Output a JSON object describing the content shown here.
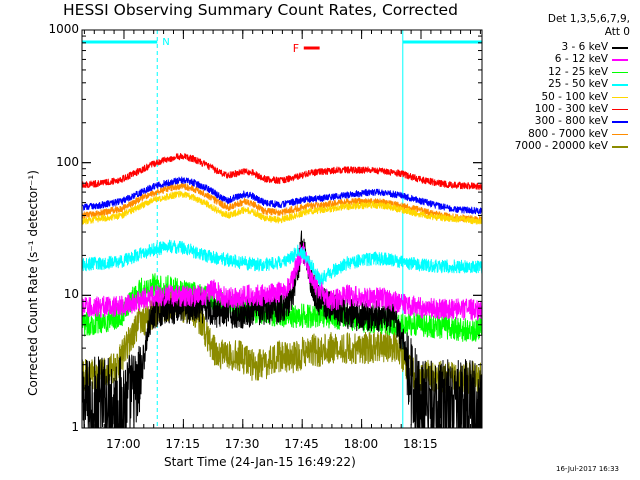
{
  "chart_data": {
    "type": "line",
    "title": "HESSI Observing Summary Count Rates, Corrected",
    "xlabel": "Start Time (24-Jan-15 16:49:22)",
    "ylabel": "Corrected Count Rate (s⁻¹ detector⁻¹)",
    "x_unit": "minutes after 16:49:22 UT",
    "x_range": [
      0,
      101
    ],
    "ylim": [
      1,
      1000
    ],
    "y_scale": "log",
    "x_ticks": [
      {
        "label": "17:00",
        "minute": 10.6
      },
      {
        "label": "17:15",
        "minute": 25.6
      },
      {
        "label": "17:30",
        "minute": 40.6
      },
      {
        "label": "17:45",
        "minute": 55.6
      },
      {
        "label": "18:00",
        "minute": 70.6
      },
      {
        "label": "18:15",
        "minute": 85.6
      }
    ],
    "y_ticks": [
      {
        "label": "1",
        "value": 1
      },
      {
        "label": "10",
        "value": 10
      },
      {
        "label": "100",
        "value": 100
      },
      {
        "label": "1000",
        "value": 1000
      }
    ],
    "legend_header": [
      "Det 1,3,5,6,7,9,",
      "Att 0"
    ],
    "series": [
      {
        "name": "3 - 6 keV",
        "color": "#000000",
        "points": [
          [
            0,
            1.5
          ],
          [
            5,
            1.6
          ],
          [
            10,
            1.6
          ],
          [
            14,
            1.8
          ],
          [
            16,
            4
          ],
          [
            17,
            6
          ],
          [
            18.5,
            7.5
          ],
          [
            22,
            8
          ],
          [
            30,
            8
          ],
          [
            34,
            7.5
          ],
          [
            37,
            7.3
          ],
          [
            42,
            7.5
          ],
          [
            45,
            7.8
          ],
          [
            49,
            8
          ],
          [
            51,
            8.3
          ],
          [
            53,
            10
          ],
          [
            54.5,
            16
          ],
          [
            55.5,
            24
          ],
          [
            56.5,
            20
          ],
          [
            58,
            12
          ],
          [
            60,
            9
          ],
          [
            65,
            7.5
          ],
          [
            70,
            7
          ],
          [
            76,
            7
          ],
          [
            79,
            6.5
          ],
          [
            81,
            4.5
          ],
          [
            83,
            2.2
          ],
          [
            86,
            1.5
          ],
          [
            91,
            1.5
          ],
          [
            96,
            1.5
          ],
          [
            101,
            1.5
          ]
        ]
      },
      {
        "name": "6 - 12 keV",
        "color": "#ff00ff",
        "points": [
          [
            0,
            8
          ],
          [
            5,
            8.2
          ],
          [
            10,
            8.3
          ],
          [
            14,
            9
          ],
          [
            18,
            10
          ],
          [
            22,
            10
          ],
          [
            27,
            9.8
          ],
          [
            31,
            10
          ],
          [
            33,
            11
          ],
          [
            37,
            9.5
          ],
          [
            42,
            10
          ],
          [
            47,
            10
          ],
          [
            51,
            11
          ],
          [
            53,
            13
          ],
          [
            54.5,
            18
          ],
          [
            55.5,
            22
          ],
          [
            56.5,
            19
          ],
          [
            58,
            13
          ],
          [
            60,
            11
          ],
          [
            63,
            9
          ],
          [
            67,
            10
          ],
          [
            72,
            9.5
          ],
          [
            76,
            9.5
          ],
          [
            79,
            9
          ],
          [
            82,
            8.5
          ],
          [
            86,
            8
          ],
          [
            91,
            8
          ],
          [
            96,
            7.8
          ],
          [
            101,
            7.8
          ]
        ]
      },
      {
        "name": "12 - 25 keV",
        "color": "#00ff00",
        "points": [
          [
            0,
            6
          ],
          [
            5,
            6.3
          ],
          [
            10,
            7
          ],
          [
            13,
            10
          ],
          [
            15,
            11
          ],
          [
            18,
            12
          ],
          [
            22,
            11.5
          ],
          [
            26,
            10.5
          ],
          [
            30,
            10
          ],
          [
            34,
            9
          ],
          [
            38,
            8
          ],
          [
            42,
            7.5
          ],
          [
            46,
            7.5
          ],
          [
            50,
            7
          ],
          [
            55,
            7
          ],
          [
            60,
            7
          ],
          [
            65,
            6.8
          ],
          [
            70,
            6.5
          ],
          [
            75,
            6.3
          ],
          [
            80,
            6
          ],
          [
            85,
            6
          ],
          [
            90,
            5.8
          ],
          [
            96,
            5.5
          ],
          [
            101,
            5.5
          ]
        ]
      },
      {
        "name": "25 - 50 keV",
        "color": "#00ffff",
        "points": [
          [
            0,
            17
          ],
          [
            5,
            17.5
          ],
          [
            10,
            18
          ],
          [
            14,
            20
          ],
          [
            18,
            22
          ],
          [
            22,
            23.5
          ],
          [
            26,
            22.5
          ],
          [
            30,
            20.5
          ],
          [
            34,
            19
          ],
          [
            37,
            18.5
          ],
          [
            41,
            17.5
          ],
          [
            45,
            17
          ],
          [
            49,
            17.5
          ],
          [
            52,
            18.5
          ],
          [
            55,
            22
          ],
          [
            58,
            17
          ],
          [
            60,
            13
          ],
          [
            63,
            15
          ],
          [
            67,
            17.5
          ],
          [
            71,
            18.5
          ],
          [
            74,
            19
          ],
          [
            78,
            18.5
          ],
          [
            82,
            17.5
          ],
          [
            86,
            17
          ],
          [
            91,
            16.5
          ],
          [
            96,
            16.5
          ],
          [
            101,
            16.5
          ]
        ]
      },
      {
        "name": "50 - 100 keV",
        "color": "#ffd700",
        "points": [
          [
            0,
            36
          ],
          [
            5,
            38
          ],
          [
            10,
            40
          ],
          [
            14,
            46
          ],
          [
            18,
            52
          ],
          [
            22,
            56
          ],
          [
            25,
            58
          ],
          [
            28,
            55
          ],
          [
            32,
            48
          ],
          [
            35,
            42
          ],
          [
            37,
            40
          ],
          [
            39,
            42
          ],
          [
            41,
            44
          ],
          [
            43,
            43
          ],
          [
            46,
            38
          ],
          [
            50,
            37
          ],
          [
            54,
            40
          ],
          [
            57,
            43
          ],
          [
            61,
            44
          ],
          [
            65,
            46
          ],
          [
            69,
            47
          ],
          [
            73,
            48
          ],
          [
            77,
            47
          ],
          [
            81,
            44
          ],
          [
            85,
            41
          ],
          [
            89,
            39
          ],
          [
            93,
            38
          ],
          [
            97,
            37
          ],
          [
            101,
            36
          ]
        ]
      },
      {
        "name": "100 - 300 keV",
        "color": "#ff0000",
        "points": [
          [
            0,
            68
          ],
          [
            5,
            70
          ],
          [
            10,
            75
          ],
          [
            14,
            85
          ],
          [
            18,
            98
          ],
          [
            22,
            107
          ],
          [
            25,
            112
          ],
          [
            28,
            107
          ],
          [
            32,
            94
          ],
          [
            35,
            84
          ],
          [
            37,
            80
          ],
          [
            39,
            83
          ],
          [
            41,
            86
          ],
          [
            43,
            84
          ],
          [
            46,
            76
          ],
          [
            50,
            73
          ],
          [
            54,
            78
          ],
          [
            57,
            83
          ],
          [
            61,
            86
          ],
          [
            65,
            88
          ],
          [
            69,
            88
          ],
          [
            73,
            88
          ],
          [
            77,
            86
          ],
          [
            81,
            82
          ],
          [
            85,
            75
          ],
          [
            89,
            71
          ],
          [
            93,
            68
          ],
          [
            97,
            67
          ],
          [
            101,
            66
          ]
        ]
      },
      {
        "name": "300 - 800 keV",
        "color": "#0000ff",
        "points": [
          [
            0,
            46
          ],
          [
            5,
            48
          ],
          [
            10,
            51
          ],
          [
            14,
            58
          ],
          [
            18,
            66
          ],
          [
            22,
            71
          ],
          [
            25,
            74
          ],
          [
            28,
            71
          ],
          [
            32,
            63
          ],
          [
            35,
            55
          ],
          [
            37,
            52
          ],
          [
            39,
            55
          ],
          [
            41,
            58
          ],
          [
            43,
            56
          ],
          [
            46,
            50
          ],
          [
            50,
            48
          ],
          [
            54,
            51
          ],
          [
            57,
            53
          ],
          [
            61,
            54
          ],
          [
            65,
            56
          ],
          [
            69,
            58
          ],
          [
            73,
            60
          ],
          [
            77,
            59
          ],
          [
            81,
            56
          ],
          [
            85,
            52
          ],
          [
            89,
            48
          ],
          [
            93,
            45
          ],
          [
            97,
            44
          ],
          [
            101,
            43
          ]
        ]
      },
      {
        "name": "800 - 7000 keV",
        "color": "#ff8c00",
        "points": [
          [
            0,
            40
          ],
          [
            5,
            42
          ],
          [
            10,
            45
          ],
          [
            14,
            52
          ],
          [
            18,
            59
          ],
          [
            22,
            64
          ],
          [
            25,
            67
          ],
          [
            28,
            64
          ],
          [
            32,
            56
          ],
          [
            35,
            49
          ],
          [
            37,
            46
          ],
          [
            39,
            48
          ],
          [
            41,
            51
          ],
          [
            43,
            49
          ],
          [
            46,
            43
          ],
          [
            50,
            42
          ],
          [
            54,
            45
          ],
          [
            57,
            47
          ],
          [
            61,
            48
          ],
          [
            65,
            50
          ],
          [
            69,
            51
          ],
          [
            73,
            51
          ],
          [
            77,
            50
          ],
          [
            81,
            47
          ],
          [
            85,
            44
          ],
          [
            89,
            41
          ],
          [
            93,
            39
          ],
          [
            97,
            38
          ],
          [
            101,
            37
          ]
        ]
      },
      {
        "name": "7000 - 20000 keV",
        "color": "#8b8b00",
        "points": [
          [
            0,
            2.5
          ],
          [
            5,
            2.6
          ],
          [
            9,
            3
          ],
          [
            12,
            4.5
          ],
          [
            14,
            6
          ],
          [
            17,
            7
          ],
          [
            20,
            8
          ],
          [
            24,
            8.5
          ],
          [
            27,
            8
          ],
          [
            30,
            6.5
          ],
          [
            33,
            4
          ],
          [
            36,
            3.5
          ],
          [
            40,
            3.5
          ],
          [
            43,
            3
          ],
          [
            46,
            3
          ],
          [
            49,
            3.5
          ],
          [
            52,
            3.3
          ],
          [
            55,
            3.5
          ],
          [
            57,
            4
          ],
          [
            60,
            3.8
          ],
          [
            63,
            4
          ],
          [
            66,
            4
          ],
          [
            70,
            4
          ],
          [
            74,
            4
          ],
          [
            78,
            4.2
          ],
          [
            80,
            4
          ],
          [
            82,
            3
          ],
          [
            84,
            2.5
          ],
          [
            88,
            2.5
          ],
          [
            92,
            2.4
          ],
          [
            96,
            2.4
          ],
          [
            101,
            2.4
          ]
        ]
      }
    ],
    "annotations": [
      {
        "type": "night_bar",
        "x_range": [
          0,
          19
        ],
        "color": "#00ffff"
      },
      {
        "type": "night_bar",
        "x_range": [
          81,
          101
        ],
        "color": "#00ffff"
      },
      {
        "type": "label",
        "text": "N",
        "x": 20,
        "color": "#00ffff"
      },
      {
        "type": "flare_marker",
        "text": "F",
        "x_range": [
          56,
          60
        ],
        "color": "#ff0000"
      },
      {
        "type": "vline",
        "x": 19,
        "style": "dashed",
        "color": "#00ffff"
      },
      {
        "type": "vline",
        "x": 81,
        "style": "solid",
        "color": "#00ffff"
      },
      {
        "type": "vline",
        "x": 101,
        "style": "dashed",
        "color": "#00ffff"
      }
    ]
  },
  "footer_date": "16-Jul-2017 16:33"
}
